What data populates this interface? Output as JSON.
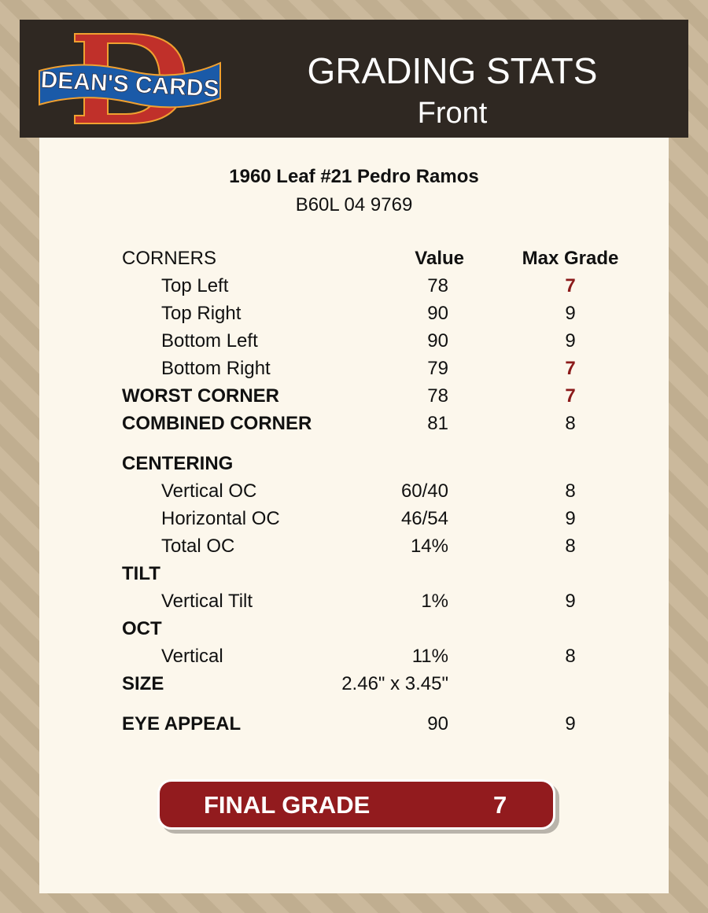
{
  "header": {
    "logo_text": "DEAN'S CARDS",
    "title": "GRADING STATS",
    "subtitle": "Front"
  },
  "card": {
    "name": "1960 Leaf #21 Pedro Ramos",
    "cert": "B60L 04 9769"
  },
  "colors": {
    "low_grade": "#8b1a1a",
    "final_bg": "#921b1e",
    "header_bg": "#2f2822"
  },
  "rows": [
    {
      "label": "CORNERS",
      "value": "Value",
      "max": "Max Grade",
      "type": "head"
    },
    {
      "label": "Top Left",
      "value": "78",
      "max": "7",
      "type": "indent",
      "low": true
    },
    {
      "label": "Top Right",
      "value": "90",
      "max": "9",
      "type": "indent"
    },
    {
      "label": "Bottom Left",
      "value": "90",
      "max": "9",
      "type": "indent"
    },
    {
      "label": "Bottom Right",
      "value": "79",
      "max": "7",
      "type": "indent",
      "low": true
    },
    {
      "label": "WORST CORNER",
      "value": "78",
      "max": "7",
      "type": "bold",
      "low": true
    },
    {
      "label": "COMBINED CORNER",
      "value": "81",
      "max": "8",
      "type": "bold"
    },
    {
      "label": "CENTERING",
      "value": "",
      "max": "",
      "type": "bold",
      "gap": true
    },
    {
      "label": "Vertical OC",
      "value": "60/40",
      "max": "8",
      "type": "indent"
    },
    {
      "label": "Horizontal OC",
      "value": "46/54",
      "max": "9",
      "type": "indent"
    },
    {
      "label": "Total OC",
      "value": "14%",
      "max": "8",
      "type": "indent"
    },
    {
      "label": "TILT",
      "value": "",
      "max": "",
      "type": "bold"
    },
    {
      "label": "Vertical Tilt",
      "value": "1%",
      "max": "9",
      "type": "indent"
    },
    {
      "label": "OCT",
      "value": "",
      "max": "",
      "type": "bold"
    },
    {
      "label": "Vertical",
      "value": "11%",
      "max": "8",
      "type": "indent"
    },
    {
      "label": "SIZE",
      "value": "2.46\" x 3.45\"",
      "max": "",
      "type": "bold"
    },
    {
      "label": "EYE APPEAL",
      "value": "90",
      "max": "9",
      "type": "bold",
      "gap": true
    }
  ],
  "final": {
    "label": "FINAL GRADE",
    "value": "7"
  }
}
